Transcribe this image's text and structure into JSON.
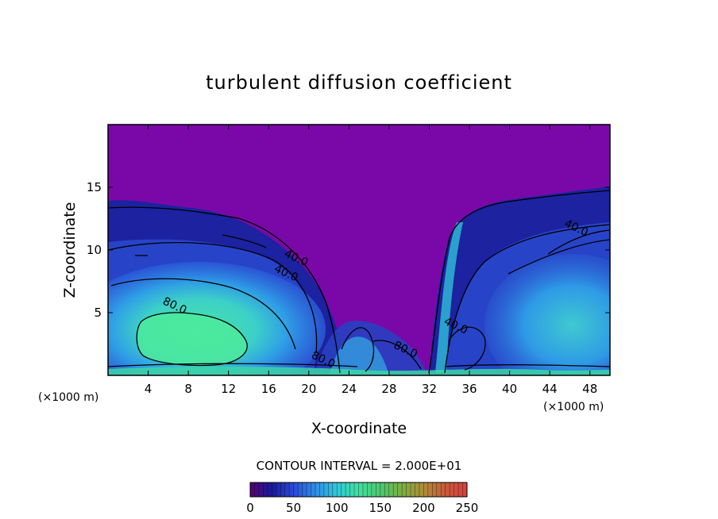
{
  "chart_data": {
    "type": "heatmap",
    "title": "turbulent diffusion coefficient",
    "xlabel": "X-coordinate",
    "ylabel": "Z-coordinate",
    "x_unit": "(×1000 m)",
    "y_unit": "(×1000 m)",
    "xlim": [
      0,
      50
    ],
    "ylim": [
      0,
      20
    ],
    "x_ticks": [
      4,
      8,
      12,
      16,
      20,
      24,
      28,
      32,
      36,
      40,
      44,
      48
    ],
    "y_ticks": [
      5,
      10,
      15
    ],
    "contour_interval_text": "CONTOUR INTERVAL = 2.000E+01",
    "colorbar": {
      "min": 0,
      "max": 250,
      "ticks": [
        0,
        50,
        100,
        150,
        200,
        250
      ],
      "colors": [
        "#5a0070",
        "#1a1a9a",
        "#2b4bd6",
        "#2f8de8",
        "#30c8d8",
        "#40e0a0",
        "#4cc870",
        "#7ab040",
        "#b08c38",
        "#c85a3c",
        "#d8403a"
      ]
    },
    "background_value": 0,
    "contour_labels": [
      {
        "x": 6.5,
        "z": 5.3,
        "text": "80.0"
      },
      {
        "x": 18.6,
        "z": 9.1,
        "text": "40.0"
      },
      {
        "x": 17.6,
        "z": 7.9,
        "text": "40.0"
      },
      {
        "x": 21.3,
        "z": 1.0,
        "text": "80.0"
      },
      {
        "x": 29.5,
        "z": 1.8,
        "text": "80.0"
      },
      {
        "x": 34.5,
        "z": 3.7,
        "text": "40.0"
      },
      {
        "x": 46.5,
        "z": 11.5,
        "text": "40.0"
      }
    ]
  }
}
